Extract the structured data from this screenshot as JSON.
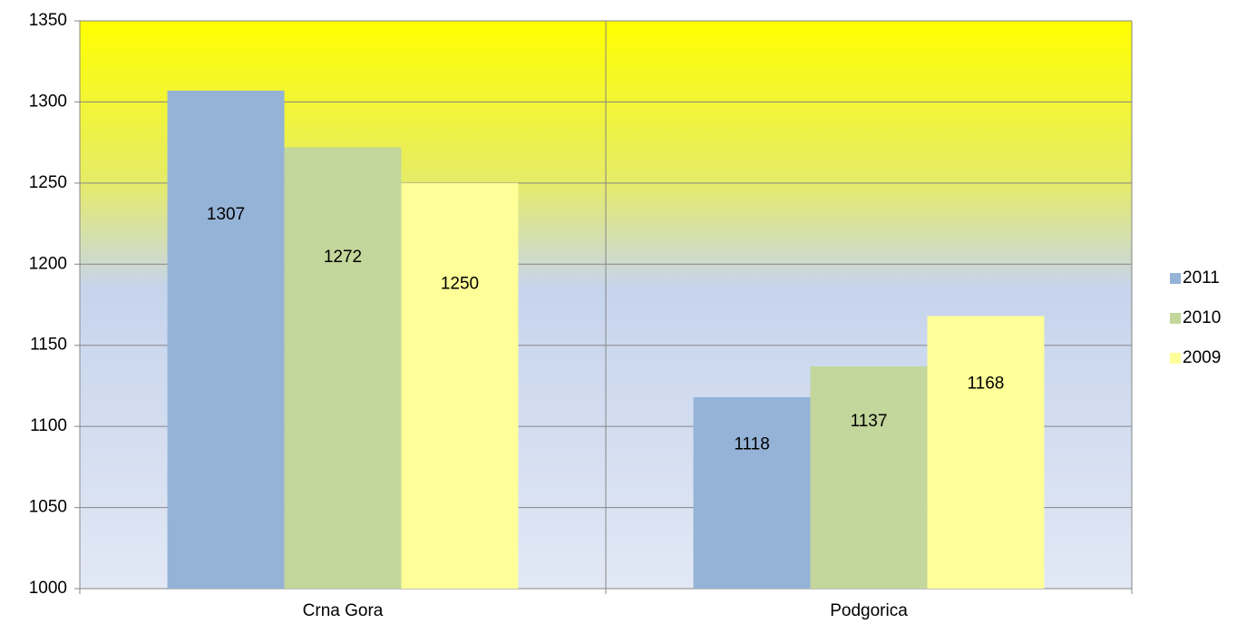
{
  "chart_data": {
    "type": "bar",
    "categories": [
      "Crna Gora",
      "Podgorica"
    ],
    "series": [
      {
        "name": "2011",
        "color": "#95b3d7",
        "values": [
          1307,
          1118
        ]
      },
      {
        "name": "2010",
        "color": "#c3d69b",
        "values": [
          1272,
          1137
        ]
      },
      {
        "name": "2009",
        "color": "#ffff99",
        "values": [
          1250,
          1168
        ]
      }
    ],
    "ylim": [
      1000,
      1350
    ],
    "yticks": [
      1000,
      1050,
      1100,
      1150,
      1200,
      1250,
      1300,
      1350
    ],
    "grid": true,
    "legend": "right"
  }
}
